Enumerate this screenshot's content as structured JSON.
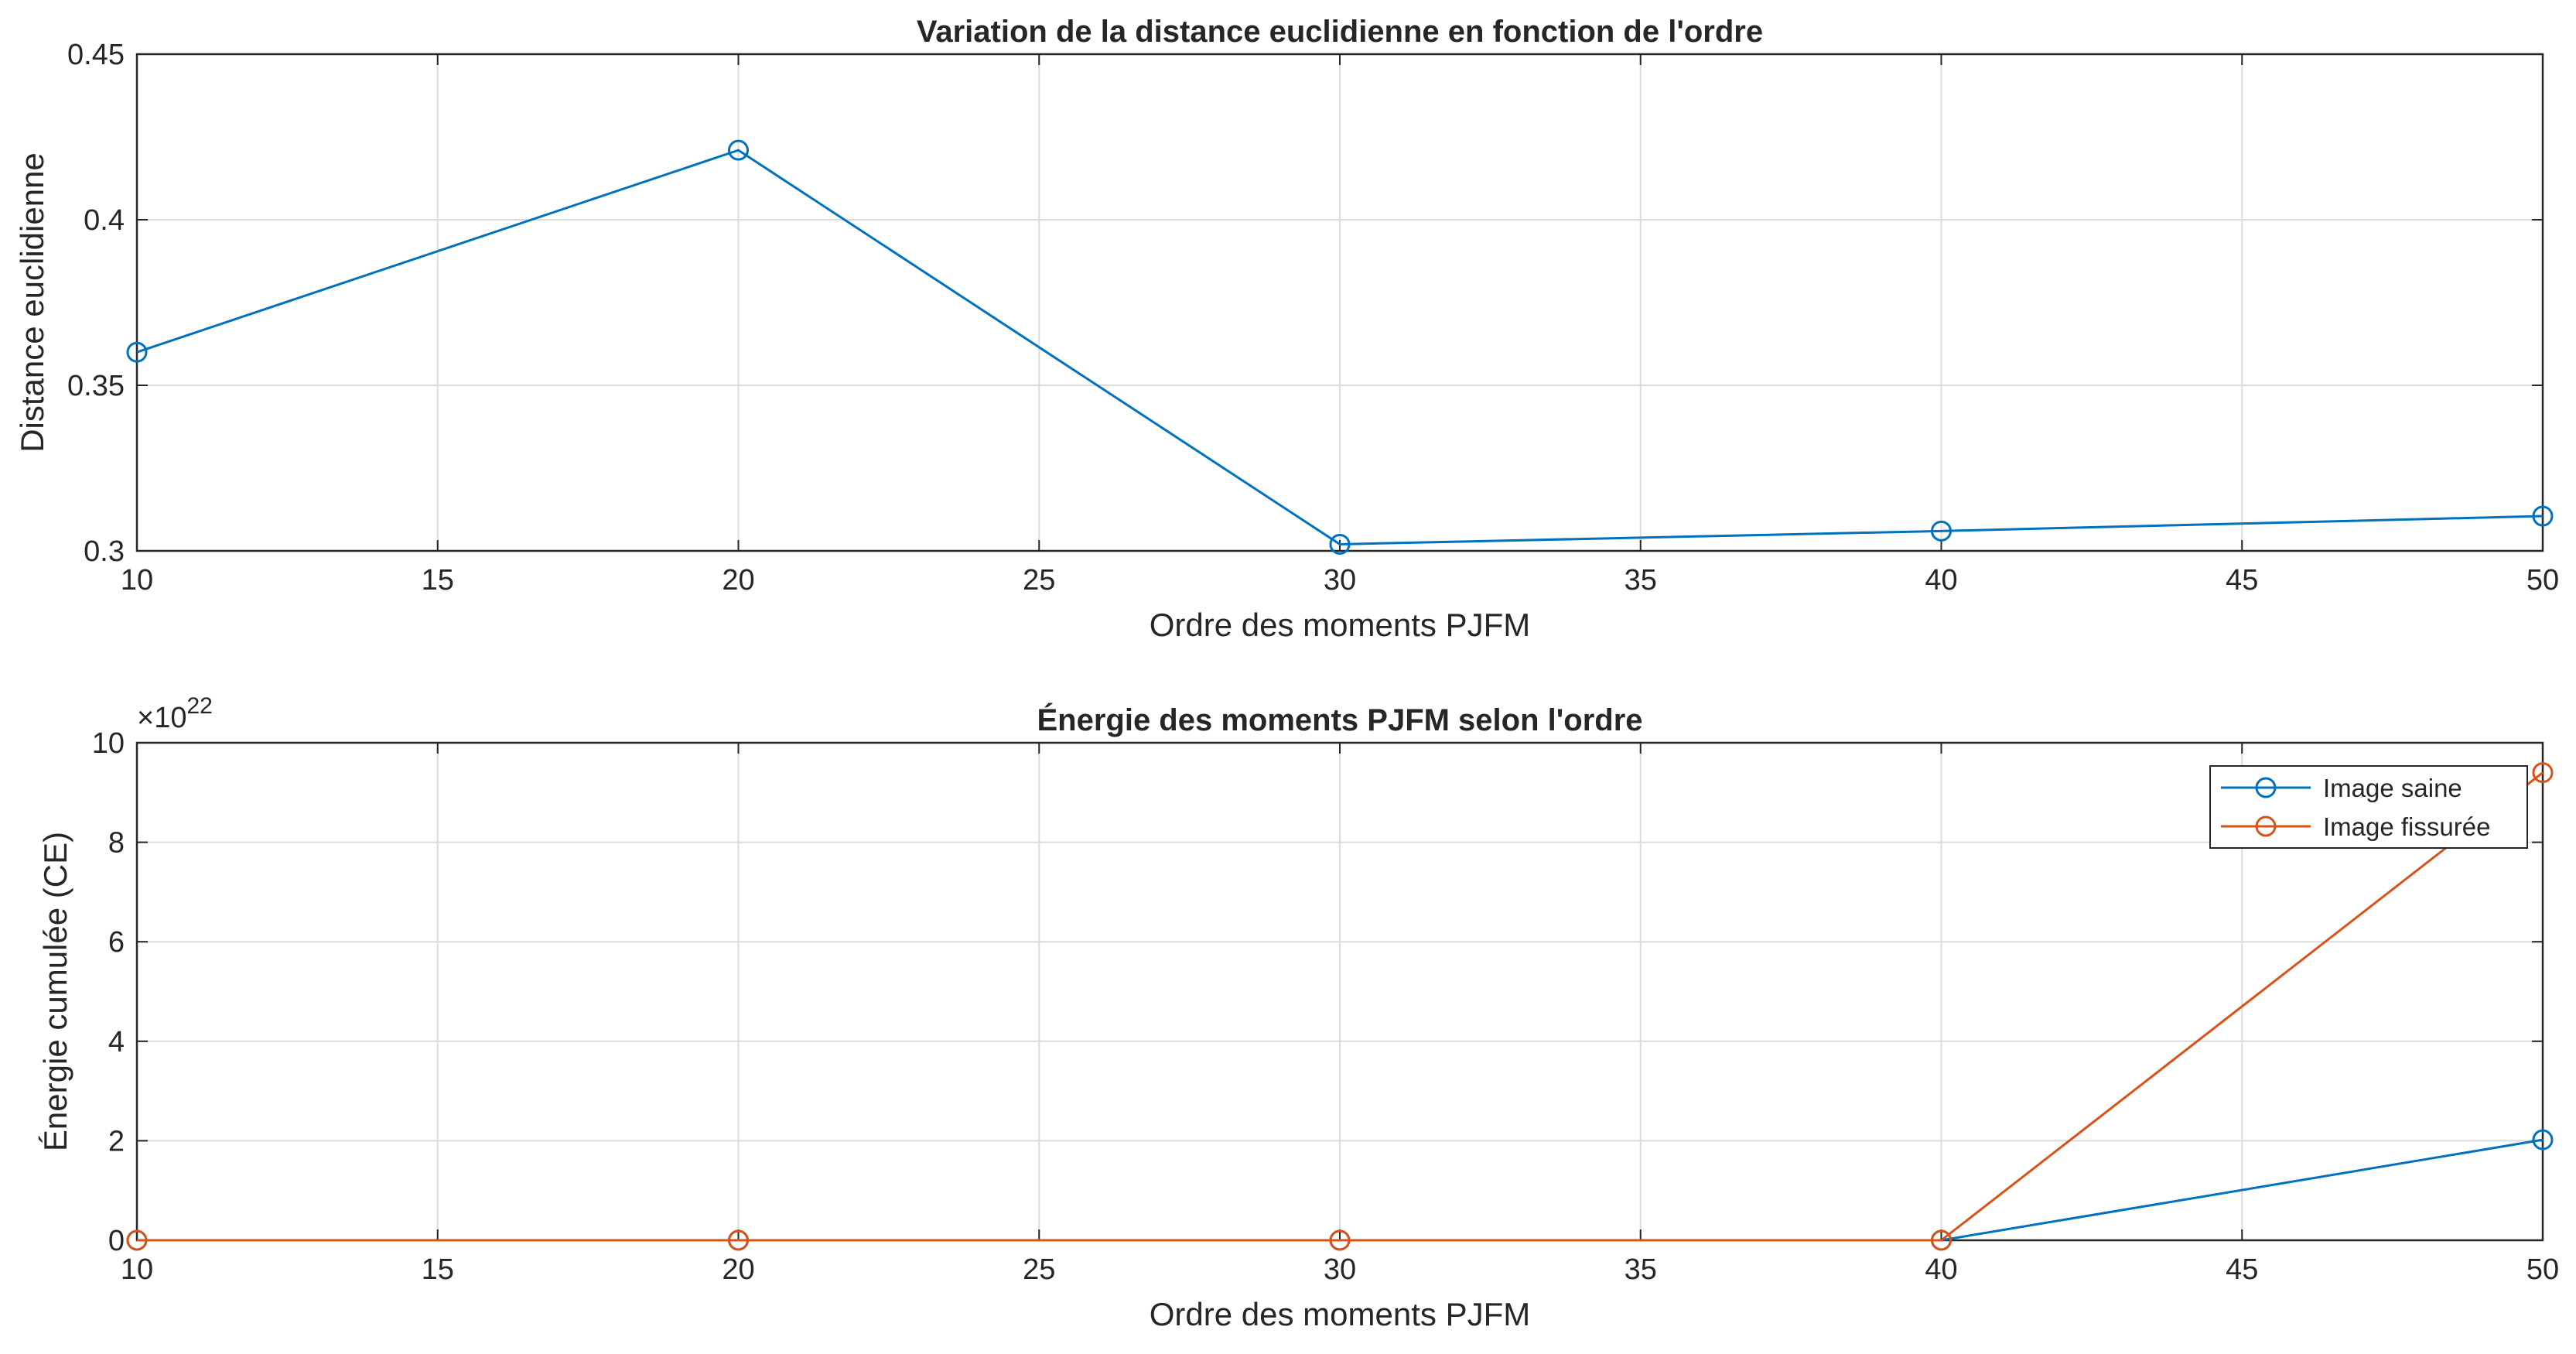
{
  "colors": {
    "series1": "#0072BD",
    "series2": "#D95319",
    "grid": "#dcdcdc",
    "axis": "#262626",
    "background": "#ffffff"
  },
  "chart_data": [
    {
      "type": "line",
      "title": "Variation de la distance euclidienne  en fonction de l'ordre",
      "xlabel": "Ordre des moments PJFM",
      "ylabel": "Distance euclidienne",
      "xlim": [
        10,
        50
      ],
      "ylim": [
        0.3,
        0.45
      ],
      "xticks": [
        "10",
        "15",
        "20",
        "25",
        "30",
        "35",
        "40",
        "45",
        "50"
      ],
      "yticks": [
        "0.3",
        "0.35",
        "0.4",
        "0.45"
      ],
      "grid": true,
      "marker": "circle",
      "series": [
        {
          "x": [
            10,
            20,
            30,
            40,
            50
          ],
          "y": [
            0.36,
            0.421,
            0.302,
            0.306,
            0.3105
          ],
          "color": "#0072BD"
        }
      ]
    },
    {
      "type": "line",
      "title": "Énergie des moments PJFM selon l'ordre",
      "xlabel": "Ordre des moments PJFM",
      "ylabel": "Énergie cumulée (CE)",
      "xlim": [
        10,
        50
      ],
      "ylim": [
        0,
        10
      ],
      "y_multiplier_base": "×10",
      "y_multiplier_exponent": "22",
      "xticks": [
        "10",
        "15",
        "20",
        "25",
        "30",
        "35",
        "40",
        "45",
        "50"
      ],
      "yticks": [
        "0",
        "2",
        "4",
        "6",
        "8",
        "10"
      ],
      "grid": true,
      "legend_location": "top-right",
      "marker": "circle",
      "series": [
        {
          "name": "Image saine",
          "x": [
            10,
            20,
            30,
            40,
            50
          ],
          "y": [
            0,
            0,
            0,
            0,
            2.02
          ],
          "color": "#0072BD"
        },
        {
          "name": "Image fissurée",
          "x": [
            10,
            20,
            30,
            40,
            50
          ],
          "y": [
            0,
            0,
            0,
            0,
            9.4
          ],
          "color": "#D95319"
        }
      ]
    }
  ]
}
